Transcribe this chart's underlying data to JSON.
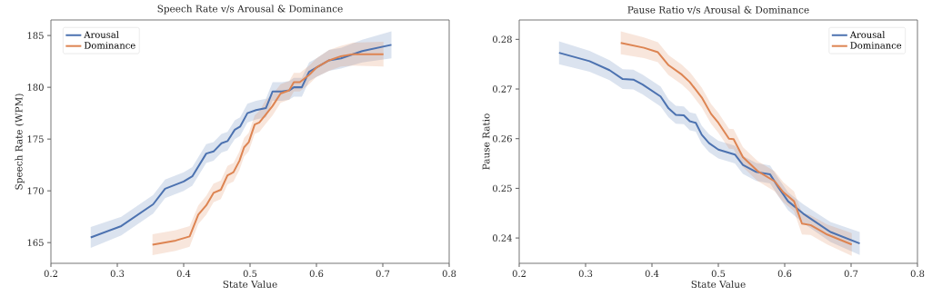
{
  "chart_data": [
    {
      "type": "line",
      "title": "Speech Rate v/s Arousal & Dominance",
      "xlabel": "State Value",
      "ylabel": "Speech Rate (WPM)",
      "xlim": [
        0.2,
        0.8
      ],
      "ylim": [
        163.0,
        186.5
      ],
      "xticks": [
        0.2,
        0.3,
        0.4,
        0.5,
        0.6,
        0.7,
        0.8
      ],
      "yticks": [
        165,
        170,
        175,
        180,
        185
      ],
      "grid": false,
      "legend": "top left",
      "line_style": "solid",
      "marker": "none",
      "series": [
        {
          "name": "Arousal",
          "color": "#4c72b0",
          "x": [
            0.26,
            0.306,
            0.354,
            0.372,
            0.4,
            0.413,
            0.434,
            0.445,
            0.457,
            0.466,
            0.477,
            0.485,
            0.496,
            0.509,
            0.524,
            0.534,
            0.548,
            0.559,
            0.566,
            0.578,
            0.589,
            0.6,
            0.619,
            0.637,
            0.669,
            0.713
          ],
          "values": [
            165.5,
            166.6,
            168.7,
            170.2,
            170.9,
            171.4,
            173.6,
            173.8,
            174.6,
            174.8,
            175.9,
            176.2,
            177.5,
            177.8,
            178.0,
            179.6,
            179.6,
            179.7,
            180.0,
            180.0,
            181.5,
            181.9,
            182.6,
            182.8,
            183.5,
            184.1
          ],
          "lower": [
            164.5,
            165.7,
            167.8,
            169.3,
            170.0,
            170.5,
            172.7,
            172.9,
            173.7,
            173.9,
            175.0,
            175.3,
            176.6,
            176.9,
            177.1,
            178.7,
            178.7,
            178.8,
            179.1,
            179.1,
            180.6,
            181.0,
            181.6,
            181.8,
            182.4,
            182.8
          ],
          "upper": [
            166.5,
            167.5,
            169.6,
            171.1,
            171.8,
            172.3,
            174.5,
            174.7,
            175.5,
            175.7,
            176.8,
            177.1,
            178.4,
            178.7,
            178.9,
            180.5,
            180.5,
            180.6,
            180.9,
            180.9,
            182.4,
            182.8,
            183.6,
            183.8,
            184.6,
            185.4
          ]
        },
        {
          "name": "Dominance",
          "color": "#dd8452",
          "x": [
            0.353,
            0.388,
            0.409,
            0.422,
            0.434,
            0.445,
            0.456,
            0.466,
            0.475,
            0.484,
            0.491,
            0.498,
            0.507,
            0.514,
            0.524,
            0.534,
            0.546,
            0.559,
            0.566,
            0.575,
            0.589,
            0.6,
            0.619,
            0.637,
            0.655,
            0.701
          ],
          "values": [
            164.8,
            165.2,
            165.6,
            167.7,
            168.6,
            169.8,
            170.1,
            171.5,
            171.8,
            172.9,
            174.2,
            174.7,
            176.4,
            176.6,
            177.4,
            178.2,
            179.4,
            179.7,
            180.5,
            180.5,
            181.2,
            181.9,
            182.6,
            183.0,
            183.2,
            183.2
          ],
          "lower": [
            163.8,
            164.2,
            164.6,
            166.8,
            167.7,
            168.9,
            169.2,
            170.6,
            170.9,
            172.0,
            173.3,
            173.8,
            175.5,
            175.7,
            176.5,
            177.3,
            178.5,
            178.8,
            179.6,
            179.6,
            180.3,
            181.0,
            181.6,
            182.0,
            182.1,
            182.0
          ],
          "upper": [
            165.8,
            166.2,
            166.6,
            168.6,
            169.5,
            170.7,
            171.0,
            172.4,
            172.7,
            173.8,
            175.1,
            175.6,
            177.3,
            177.7,
            178.8,
            179.3,
            180.3,
            180.6,
            181.4,
            181.4,
            182.1,
            182.8,
            183.6,
            184.0,
            184.3,
            184.4
          ]
        }
      ]
    },
    {
      "type": "line",
      "title": "Pause Ratio v/s Arousal & Dominance",
      "xlabel": "State Value",
      "ylabel": "Pause Ratio",
      "xlim": [
        0.2,
        0.8
      ],
      "ylim": [
        0.2349,
        0.2839
      ],
      "xticks": [
        0.2,
        0.3,
        0.4,
        0.5,
        0.6,
        0.7,
        0.8
      ],
      "yticks": [
        0.24,
        0.25,
        0.26,
        0.27,
        0.28
      ],
      "grid": false,
      "legend": "top right",
      "line_style": "solid",
      "marker": "none",
      "series": [
        {
          "name": "Arousal",
          "color": "#4c72b0",
          "x": [
            0.26,
            0.306,
            0.336,
            0.356,
            0.372,
            0.386,
            0.413,
            0.425,
            0.436,
            0.448,
            0.457,
            0.466,
            0.475,
            0.486,
            0.5,
            0.525,
            0.537,
            0.557,
            0.578,
            0.591,
            0.605,
            0.628,
            0.669,
            0.713
          ],
          "values": [
            0.2773,
            0.2756,
            0.2738,
            0.272,
            0.2719,
            0.2709,
            0.2685,
            0.2661,
            0.2648,
            0.2647,
            0.2635,
            0.2632,
            0.2608,
            0.2591,
            0.2578,
            0.2568,
            0.2547,
            0.2533,
            0.2528,
            0.2501,
            0.2474,
            0.2449,
            0.2412,
            0.2389
          ],
          "lower": [
            0.275,
            0.2735,
            0.2718,
            0.27,
            0.2699,
            0.2689,
            0.2665,
            0.2643,
            0.263,
            0.2629,
            0.2617,
            0.2614,
            0.259,
            0.2573,
            0.256,
            0.255,
            0.2529,
            0.2515,
            0.251,
            0.2483,
            0.2456,
            0.243,
            0.2392,
            0.2366
          ],
          "upper": [
            0.2796,
            0.2777,
            0.2758,
            0.274,
            0.2739,
            0.2729,
            0.2705,
            0.2679,
            0.2666,
            0.2665,
            0.2653,
            0.265,
            0.2626,
            0.2609,
            0.2596,
            0.2586,
            0.2565,
            0.2551,
            0.2546,
            0.2519,
            0.2492,
            0.2468,
            0.2432,
            0.2412
          ]
        },
        {
          "name": "Dominance",
          "color": "#dd8452",
          "x": [
            0.353,
            0.388,
            0.409,
            0.425,
            0.445,
            0.457,
            0.475,
            0.489,
            0.5,
            0.516,
            0.523,
            0.537,
            0.559,
            0.585,
            0.598,
            0.614,
            0.626,
            0.639,
            0.664,
            0.701
          ],
          "values": [
            0.2793,
            0.2783,
            0.2774,
            0.2748,
            0.2729,
            0.2714,
            0.2683,
            0.265,
            0.2632,
            0.26,
            0.2599,
            0.2563,
            0.2535,
            0.2514,
            0.2492,
            0.2474,
            0.2429,
            0.2426,
            0.2407,
            0.2387
          ],
          "lower": [
            0.277,
            0.2762,
            0.2754,
            0.2728,
            0.2709,
            0.2694,
            0.2663,
            0.263,
            0.2612,
            0.258,
            0.2579,
            0.2543,
            0.2515,
            0.2494,
            0.2472,
            0.2454,
            0.2407,
            0.2406,
            0.2387,
            0.2364
          ],
          "upper": [
            0.2816,
            0.2804,
            0.2794,
            0.2768,
            0.2749,
            0.2734,
            0.2703,
            0.267,
            0.2652,
            0.262,
            0.2619,
            0.2583,
            0.2555,
            0.2534,
            0.2512,
            0.2494,
            0.2451,
            0.2446,
            0.2427,
            0.241
          ]
        }
      ]
    }
  ]
}
